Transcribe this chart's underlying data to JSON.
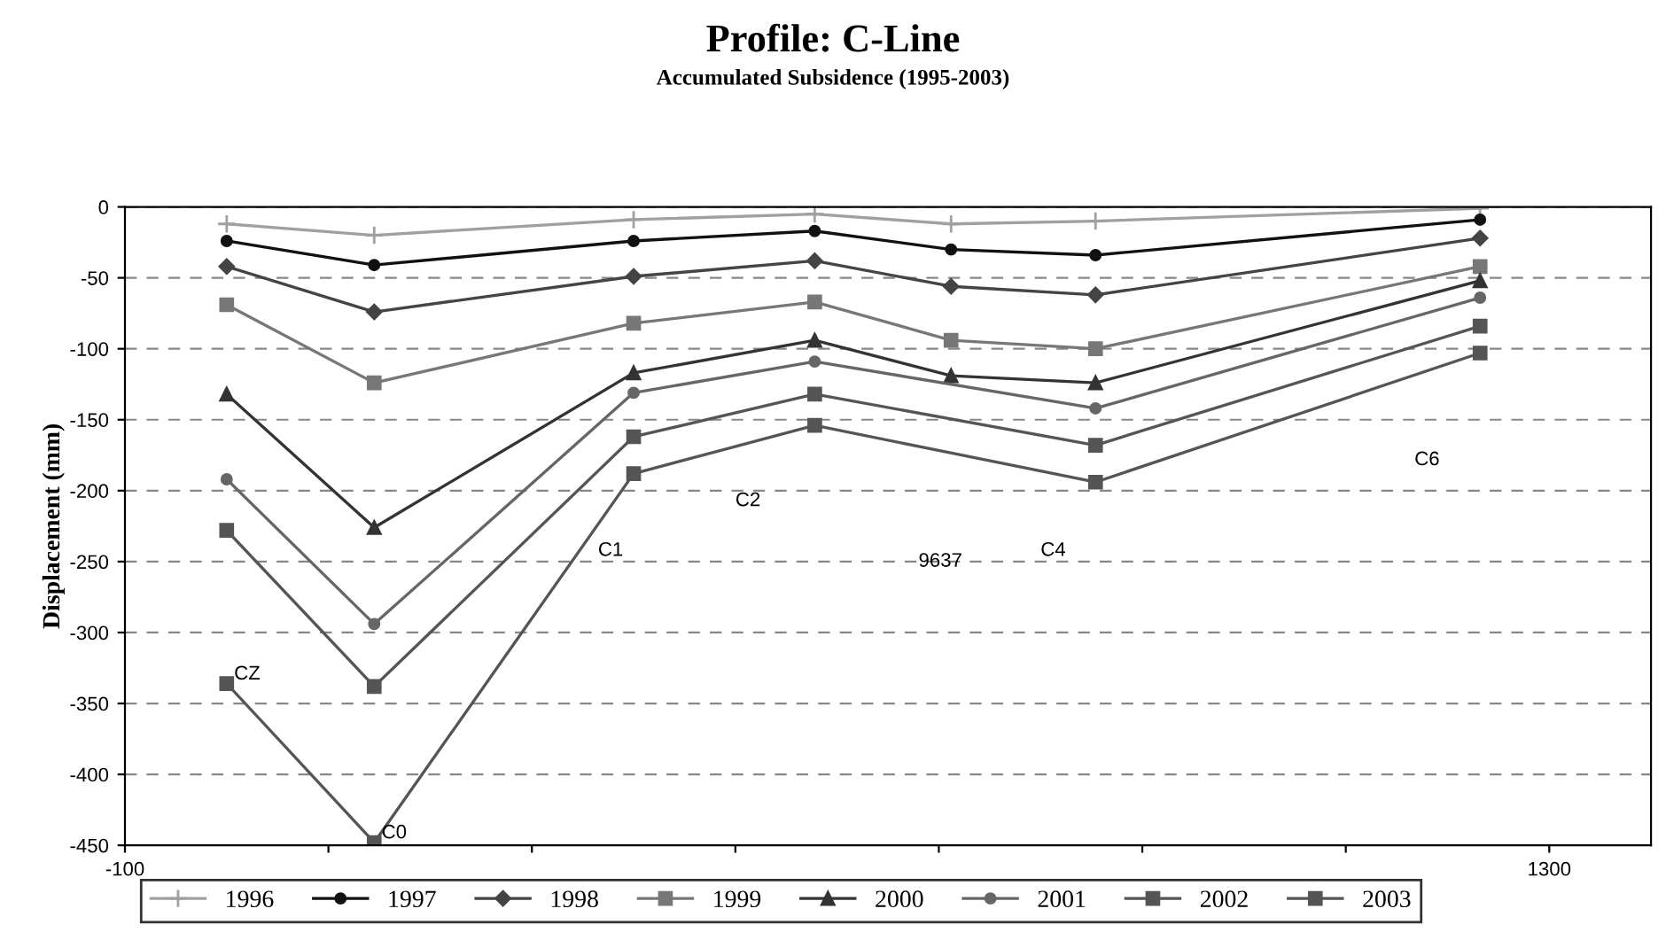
{
  "chart_data": {
    "type": "line",
    "title": "Profile: C-Line",
    "subtitle": "Accumulated Subsidence (1995-2003)",
    "ylabel": "Displacement (mm)",
    "x": [
      0,
      145,
      400,
      578,
      712,
      854,
      1232
    ],
    "series": [
      {
        "name": "1996",
        "color": "#a0a0a0",
        "marker": "cross",
        "values": [
          -12,
          -20,
          -9,
          -5,
          -12,
          -10,
          -1
        ]
      },
      {
        "name": "1997",
        "color": "#111111",
        "marker": "circle",
        "values": [
          -24,
          -41,
          -24,
          -17,
          -30,
          -34,
          -9
        ]
      },
      {
        "name": "1998",
        "color": "#444444",
        "marker": "diamond",
        "values": [
          -42,
          -74,
          -49,
          -38,
          -56,
          -62,
          -22
        ]
      },
      {
        "name": "1999",
        "color": "#777777",
        "marker": "square",
        "values": [
          -69,
          -124,
          -82,
          -67,
          -94,
          -100,
          -42
        ]
      },
      {
        "name": "2000",
        "color": "#333333",
        "marker": "triangle",
        "values": [
          -132,
          -226,
          -117,
          -94,
          -119,
          -124,
          -52
        ]
      },
      {
        "name": "2001",
        "color": "#666666",
        "marker": "circle",
        "values": [
          -192,
          -294,
          -131,
          -109,
          null,
          -142,
          -64
        ]
      },
      {
        "name": "2002",
        "color": "#555555",
        "marker": "square",
        "values": [
          -228,
          -338,
          -162,
          -132,
          null,
          -168,
          -84
        ]
      },
      {
        "name": "2003",
        "color": "#555555",
        "marker": "square",
        "values": [
          -336,
          -448,
          -188,
          -154,
          null,
          -194,
          -103
        ]
      }
    ],
    "annotations": [
      {
        "text": "CZ",
        "x": 0,
        "y": -336
      },
      {
        "text": "C0",
        "x": 145,
        "y": -448
      },
      "C1",
      "C2",
      "9637",
      "C4",
      "C6"
    ],
    "xlim": [
      -100,
      1400
    ],
    "ylim": [
      -450,
      0
    ],
    "xticks": [
      -100,
      {
        "value": 100,
        "label": null
      },
      {
        "value": 300,
        "label": null
      },
      {
        "value": 500,
        "label": null
      },
      {
        "value": 700,
        "label": null
      },
      {
        "value": 900,
        "label": null
      },
      {
        "value": 1100,
        "label": null
      },
      1300
    ],
    "yticks": [
      -450,
      -400,
      -350,
      -300,
      -250,
      -200,
      -150,
      -100,
      -50,
      0
    ],
    "grid": "y",
    "legend": "bottom",
    "line_style": "solid"
  }
}
